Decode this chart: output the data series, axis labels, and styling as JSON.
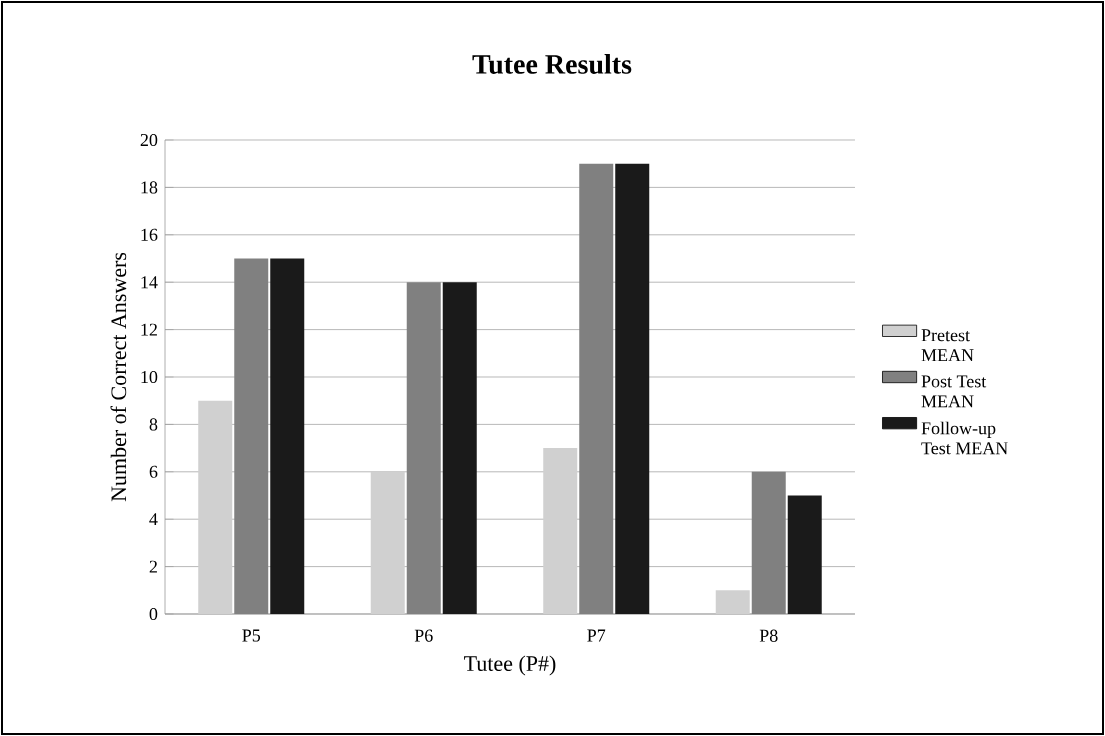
{
  "chart_data": {
    "type": "bar",
    "title": "Tutee Results",
    "xlabel": "Tutee  (P#)",
    "ylabel": "Number of Correct Answers",
    "categories": [
      "P5",
      "P6",
      "P7",
      "P8"
    ],
    "series": [
      {
        "name": "Pretest MEAN",
        "color": "#d0d0d0",
        "values": [
          9,
          6,
          7,
          1
        ]
      },
      {
        "name": "Post Test MEAN",
        "color": "#808080",
        "values": [
          15,
          14,
          19,
          6
        ]
      },
      {
        "name": "Follow-up Test MEAN",
        "color": "#1a1a1a",
        "values": [
          15,
          14,
          19,
          5
        ]
      }
    ],
    "ylim": [
      0,
      20
    ],
    "yticks": [
      0,
      2,
      4,
      6,
      8,
      10,
      12,
      14,
      16,
      18,
      20
    ],
    "grid": "y",
    "legend": "right"
  }
}
